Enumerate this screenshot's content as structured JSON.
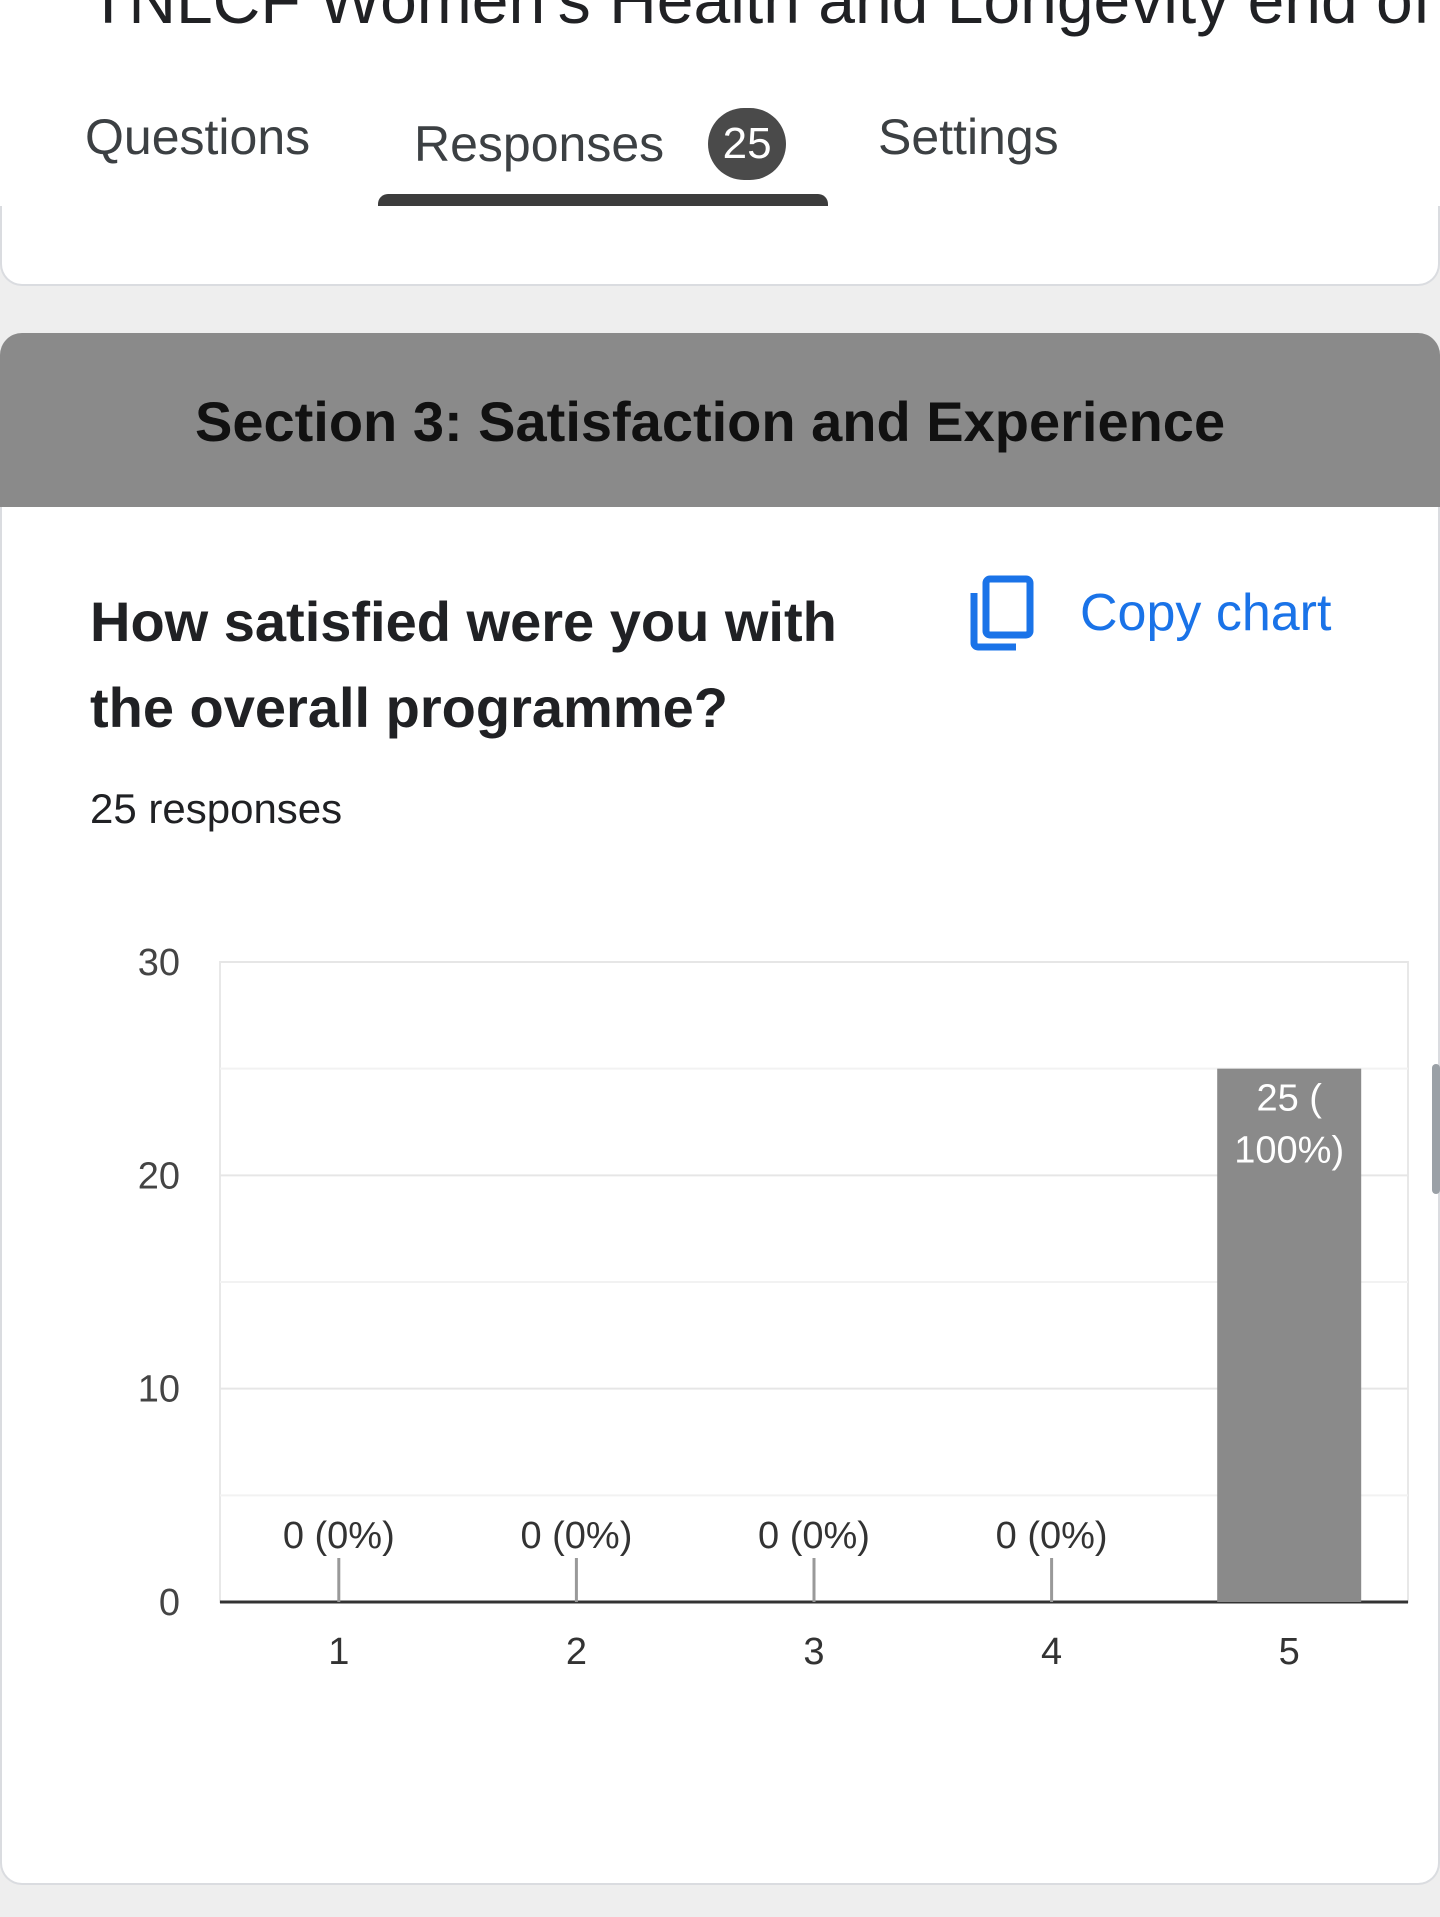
{
  "header": {
    "doc_title": "TNLCF Women's Health and Longevity end of",
    "tabs": [
      {
        "label": "Questions"
      },
      {
        "label": "Responses",
        "badge": "25"
      },
      {
        "label": "Settings"
      }
    ],
    "active_tab": "Responses"
  },
  "section": {
    "title": "Section 3: Satisfaction and Experience"
  },
  "question": {
    "text": "How satisfied were you with the overall programme?",
    "responses_label": "25 responses",
    "copy_chart_label": "Copy chart",
    "copy_icon": "copy-icon"
  },
  "colors": {
    "bar": "#8a8a8a",
    "accent": "#1a73e8",
    "section_header": "#8a8a8a"
  },
  "chart_data": {
    "type": "bar",
    "categories": [
      "1",
      "2",
      "3",
      "4",
      "5"
    ],
    "values": [
      0,
      0,
      0,
      0,
      25
    ],
    "data_labels": [
      "0 (0%)",
      "0 (0%)",
      "0 (0%)",
      "0 (0%)",
      "25 (\n100%)"
    ],
    "ylim": [
      0,
      30
    ],
    "yticks": [
      0,
      10,
      20,
      30
    ],
    "grid": true,
    "title": "",
    "xlabel": "",
    "ylabel": ""
  }
}
